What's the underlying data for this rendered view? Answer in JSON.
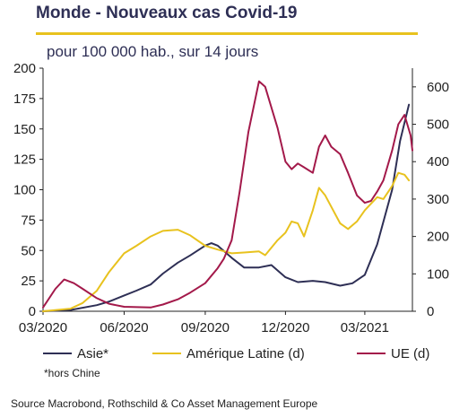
{
  "header": {
    "title": "Monde - Nouveaux cas Covid-19",
    "subtitle": "pour 100 000 hab., sur 14 jours"
  },
  "footer": {
    "note": "*hors Chine",
    "source": "Source Macrobond, Rothschild & Co Asset Management Europe"
  },
  "colors": {
    "asie": "#2e2f55",
    "amerique_latine": "#e8c21e",
    "ue": "#a3194a",
    "title_rule": "#e8c21e"
  },
  "chart_data": {
    "type": "line",
    "title": "Monde - Nouveaux cas Covid-19",
    "subtitle": "pour 100 000 hab., sur 14 jours",
    "x_ticks": [
      "03/2020",
      "06/2020",
      "09/2020",
      "12/2020",
      "03/2021"
    ],
    "xlim": [
      "2020-03-01",
      "2021-04-24"
    ],
    "y_left": {
      "ylim": [
        0,
        200
      ],
      "ticks": [
        "0",
        "25",
        "50",
        "75",
        "100",
        "125",
        "150",
        "175",
        "200"
      ]
    },
    "y_right": {
      "ylim": [
        0,
        650
      ],
      "ticks": [
        "0",
        "100",
        "200",
        "300",
        "400",
        "500",
        "600"
      ]
    },
    "grid": false,
    "legend_position": "bottom",
    "series": [
      {
        "name": "Asie*",
        "axis": "left",
        "color": "#2e2f55",
        "points": [
          [
            "2020-03-01",
            0
          ],
          [
            "2020-04-01",
            1
          ],
          [
            "2020-05-01",
            5
          ],
          [
            "2020-05-15",
            8
          ],
          [
            "2020-06-01",
            13
          ],
          [
            "2020-06-15",
            17
          ],
          [
            "2020-07-01",
            22
          ],
          [
            "2020-07-15",
            31
          ],
          [
            "2020-08-01",
            40
          ],
          [
            "2020-08-15",
            46
          ],
          [
            "2020-09-01",
            54
          ],
          [
            "2020-09-08",
            56
          ],
          [
            "2020-09-15",
            54
          ],
          [
            "2020-10-01",
            44
          ],
          [
            "2020-10-15",
            36
          ],
          [
            "2020-11-01",
            36
          ],
          [
            "2020-11-15",
            38
          ],
          [
            "2020-12-01",
            28
          ],
          [
            "2020-12-15",
            24
          ],
          [
            "2021-01-01",
            25
          ],
          [
            "2021-01-15",
            24
          ],
          [
            "2021-02-01",
            21
          ],
          [
            "2021-02-15",
            23
          ],
          [
            "2021-03-01",
            30
          ],
          [
            "2021-03-15",
            55
          ],
          [
            "2021-04-01",
            100
          ],
          [
            "2021-04-10",
            140
          ],
          [
            "2021-04-20",
            170
          ]
        ]
      },
      {
        "name": "Amérique Latine (d)",
        "axis": "right",
        "color": "#e8c21e",
        "points": [
          [
            "2020-03-01",
            0
          ],
          [
            "2020-04-01",
            7
          ],
          [
            "2020-04-15",
            22
          ],
          [
            "2020-05-01",
            55
          ],
          [
            "2020-05-15",
            105
          ],
          [
            "2020-06-01",
            155
          ],
          [
            "2020-06-15",
            175
          ],
          [
            "2020-07-01",
            200
          ],
          [
            "2020-07-15",
            215
          ],
          [
            "2020-08-01",
            218
          ],
          [
            "2020-08-15",
            203
          ],
          [
            "2020-09-01",
            175
          ],
          [
            "2020-09-15",
            165
          ],
          [
            "2020-10-01",
            155
          ],
          [
            "2020-10-15",
            157
          ],
          [
            "2020-11-01",
            160
          ],
          [
            "2020-11-08",
            150
          ],
          [
            "2020-11-22",
            190
          ],
          [
            "2020-12-01",
            210
          ],
          [
            "2020-12-08",
            240
          ],
          [
            "2020-12-15",
            235
          ],
          [
            "2020-12-22",
            200
          ],
          [
            "2021-01-01",
            270
          ],
          [
            "2021-01-08",
            330
          ],
          [
            "2021-01-15",
            310
          ],
          [
            "2021-02-01",
            235
          ],
          [
            "2021-02-10",
            220
          ],
          [
            "2021-02-20",
            240
          ],
          [
            "2021-03-01",
            270
          ],
          [
            "2021-03-15",
            305
          ],
          [
            "2021-03-22",
            300
          ],
          [
            "2021-04-01",
            335
          ],
          [
            "2021-04-08",
            370
          ],
          [
            "2021-04-15",
            365
          ],
          [
            "2021-04-20",
            350
          ]
        ]
      },
      {
        "name": "UE (d)",
        "axis": "right",
        "color": "#a3194a",
        "points": [
          [
            "2020-03-01",
            10
          ],
          [
            "2020-03-15",
            60
          ],
          [
            "2020-03-25",
            85
          ],
          [
            "2020-04-05",
            75
          ],
          [
            "2020-04-15",
            60
          ],
          [
            "2020-05-01",
            35
          ],
          [
            "2020-05-15",
            20
          ],
          [
            "2020-06-01",
            12
          ],
          [
            "2020-07-01",
            10
          ],
          [
            "2020-07-15",
            18
          ],
          [
            "2020-08-01",
            32
          ],
          [
            "2020-08-15",
            50
          ],
          [
            "2020-09-01",
            75
          ],
          [
            "2020-09-15",
            115
          ],
          [
            "2020-09-22",
            140
          ],
          [
            "2020-10-01",
            190
          ],
          [
            "2020-10-10",
            320
          ],
          [
            "2020-10-20",
            480
          ],
          [
            "2020-11-01",
            615
          ],
          [
            "2020-11-08",
            600
          ],
          [
            "2020-11-22",
            490
          ],
          [
            "2020-12-01",
            400
          ],
          [
            "2020-12-08",
            380
          ],
          [
            "2020-12-15",
            395
          ],
          [
            "2020-12-22",
            385
          ],
          [
            "2021-01-01",
            370
          ],
          [
            "2021-01-08",
            440
          ],
          [
            "2021-01-15",
            470
          ],
          [
            "2021-01-22",
            440
          ],
          [
            "2021-02-01",
            420
          ],
          [
            "2021-02-10",
            370
          ],
          [
            "2021-02-20",
            310
          ],
          [
            "2021-03-01",
            290
          ],
          [
            "2021-03-08",
            295
          ],
          [
            "2021-03-15",
            320
          ],
          [
            "2021-03-22",
            350
          ],
          [
            "2021-04-01",
            430
          ],
          [
            "2021-04-08",
            500
          ],
          [
            "2021-04-15",
            525
          ],
          [
            "2021-04-22",
            470
          ],
          [
            "2021-04-24",
            430
          ]
        ]
      }
    ]
  }
}
